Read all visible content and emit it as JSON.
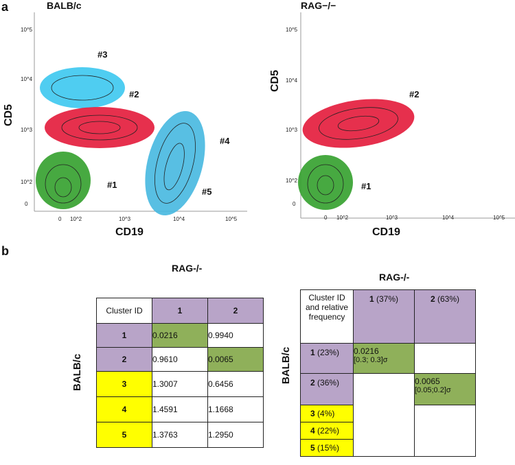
{
  "panel_a": {
    "letter": "a",
    "left_plot": {
      "title": "BALB/c",
      "ylabel": "CD5",
      "xlabel": "CD19",
      "y_ticks": [
        "10^5",
        "10^4",
        "10^3",
        "10^2",
        "0"
      ],
      "x_ticks": [
        "0",
        "10^2",
        "10^3",
        "10^4",
        "10^5"
      ],
      "clusters": [
        "#1",
        "#2",
        "#3",
        "#4",
        "#5"
      ]
    },
    "right_plot": {
      "title": "RAG−/−",
      "ylabel": "CD5",
      "xlabel": "CD19",
      "y_ticks": [
        "10^5",
        "10^4",
        "10^3",
        "10^2",
        "0"
      ],
      "x_ticks": [
        "0",
        "10^2",
        "10^3",
        "10^4",
        "10^5"
      ],
      "clusters": [
        "#1",
        "#2"
      ]
    },
    "colors": {
      "cluster1": "#33a02c",
      "cluster2": "#e31a3a",
      "cluster3": "#3cc8f0",
      "cluster45": "#46b8e0",
      "noise": "#555555"
    }
  },
  "panel_b": {
    "letter": "b",
    "left_table": {
      "title": "RAG-/-",
      "side_label": "BALB/c",
      "corner": "Cluster ID",
      "col_headers": [
        "1",
        "2"
      ],
      "rows": [
        {
          "id": "1",
          "values": [
            "0.0216",
            "0.9940"
          ]
        },
        {
          "id": "2",
          "values": [
            "0.9610",
            "0.0065"
          ]
        },
        {
          "id": "3",
          "values": [
            "1.3007",
            "0.6456"
          ]
        },
        {
          "id": "4",
          "values": [
            "1.4591",
            "1.1668"
          ]
        },
        {
          "id": "5",
          "values": [
            "1.3763",
            "1.2950"
          ]
        }
      ]
    },
    "right_table": {
      "title": "RAG-/-",
      "side_label": "BALB/c",
      "corner": "Cluster ID and relative frequency",
      "col_headers": [
        {
          "id": "1",
          "freq": "(37%)"
        },
        {
          "id": "2",
          "freq": "(63%)"
        }
      ],
      "rows": [
        {
          "id": "1",
          "freq": "(23%)"
        },
        {
          "id": "2",
          "freq": "(36%)"
        },
        {
          "id": "3",
          "freq": "(4%)"
        },
        {
          "id": "4",
          "freq": "(22%)"
        },
        {
          "id": "5",
          "freq": "(15%)"
        }
      ],
      "match1": {
        "value": "0.0216",
        "interval": "[0.3; 0.3]σ"
      },
      "match2": {
        "value": "0.0065",
        "interval": "[0.05;0.2]σ"
      }
    }
  }
}
